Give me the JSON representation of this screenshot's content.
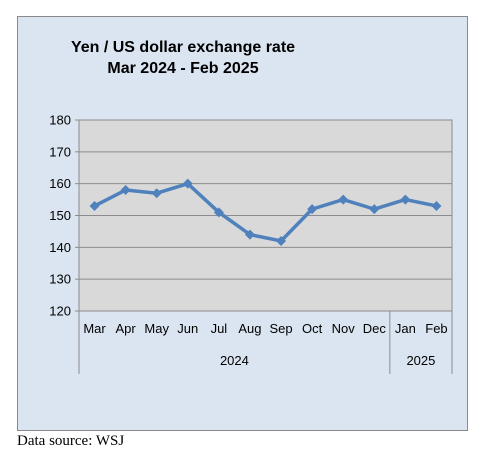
{
  "chart_data": {
    "type": "line",
    "title": [
      "Yen / US dollar exchange rate",
      "Mar 2024  -  Feb 2025"
    ],
    "categories": [
      "Mar",
      "Apr",
      "May",
      "Jun",
      "Jul",
      "Aug",
      "Sep",
      "Oct",
      "Nov",
      "Dec",
      "Jan",
      "Feb"
    ],
    "category_groups": [
      {
        "label": "2024",
        "count": 10
      },
      {
        "label": "2025",
        "count": 2
      }
    ],
    "series": [
      {
        "values": [
          153,
          158,
          157,
          160,
          151,
          144,
          142,
          152,
          155,
          152,
          155,
          153
        ],
        "color": "#4f81bd"
      }
    ],
    "ylim": [
      120,
      180
    ],
    "yticks": [
      120,
      130,
      140,
      150,
      160,
      170,
      180
    ],
    "grid": true,
    "legend": "none",
    "colors": {
      "background": "#dbe5f1",
      "plot_area": "#d9d9d9",
      "line": "#4f81bd"
    }
  },
  "source_note": "Data source: WSJ"
}
